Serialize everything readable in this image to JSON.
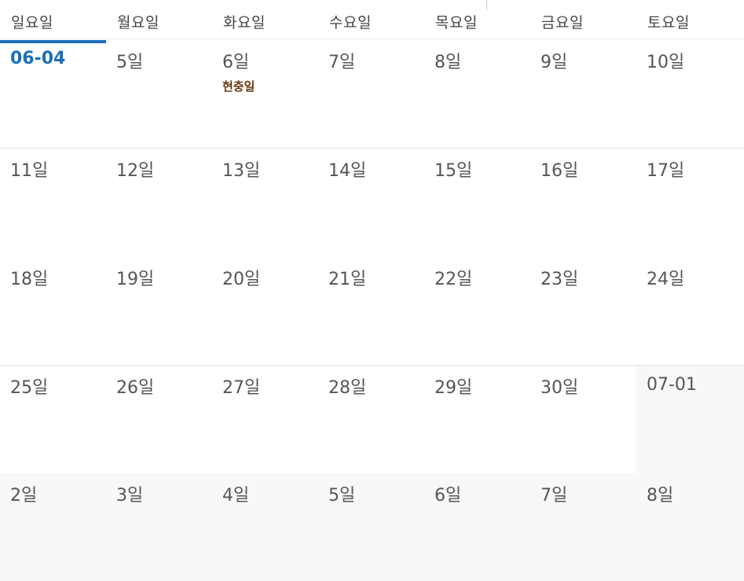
{
  "weekdays": [
    "일요일",
    "월요일",
    "화요일",
    "수요일",
    "목요일",
    "금요일",
    "토요일"
  ],
  "weeks": [
    [
      {
        "date": "06-04",
        "today": true
      },
      {
        "date": "5일"
      },
      {
        "date": "6일",
        "event": "현충일"
      },
      {
        "date": "7일"
      },
      {
        "date": "8일"
      },
      {
        "date": "9일"
      },
      {
        "date": "10일"
      }
    ],
    [
      {
        "date": "11일"
      },
      {
        "date": "12일"
      },
      {
        "date": "13일"
      },
      {
        "date": "14일"
      },
      {
        "date": "15일"
      },
      {
        "date": "16일"
      },
      {
        "date": "17일"
      }
    ],
    [
      {
        "date": "18일"
      },
      {
        "date": "19일"
      },
      {
        "date": "20일"
      },
      {
        "date": "21일"
      },
      {
        "date": "22일"
      },
      {
        "date": "23일"
      },
      {
        "date": "24일"
      }
    ],
    [
      {
        "date": "25일"
      },
      {
        "date": "26일"
      },
      {
        "date": "27일"
      },
      {
        "date": "28일"
      },
      {
        "date": "29일"
      },
      {
        "date": "30일"
      },
      {
        "date": "07-01",
        "next_month": true
      }
    ],
    [
      {
        "date": "2일",
        "next_month": true
      },
      {
        "date": "3일",
        "next_month": true
      },
      {
        "date": "4일",
        "next_month": true
      },
      {
        "date": "5일",
        "next_month": true
      },
      {
        "date": "6일",
        "next_month": true
      },
      {
        "date": "7일",
        "next_month": true
      },
      {
        "date": "8일",
        "next_month": true
      }
    ]
  ],
  "colors": {
    "today": "#1a6fba",
    "event": "#6a3a10",
    "other_month_bg": "#f8f8f8",
    "text": "#555555"
  }
}
